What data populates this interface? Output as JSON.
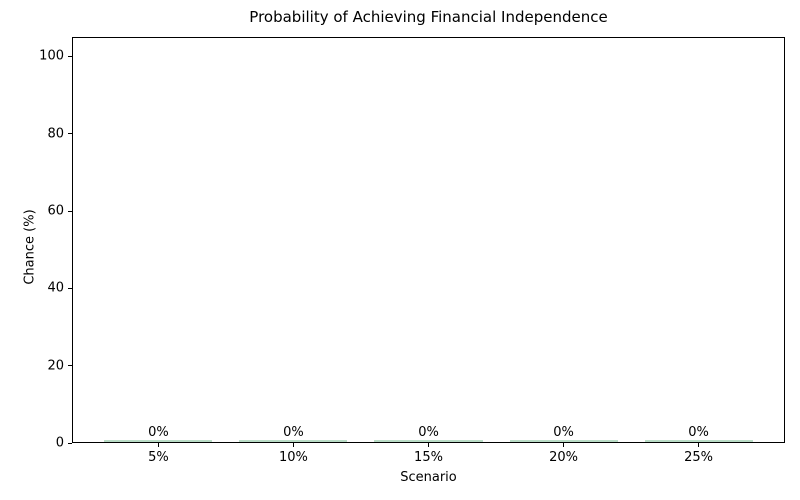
{
  "chart_data": {
    "type": "bar",
    "title": "Probability of Achieving Financial Independence",
    "xlabel": "Scenario",
    "ylabel": "Chance (%)",
    "categories": [
      "5%",
      "10%",
      "15%",
      "20%",
      "25%"
    ],
    "values": [
      0,
      0,
      0,
      0,
      0
    ],
    "bar_labels": [
      "0%",
      "0%",
      "0%",
      "0%",
      "0%"
    ],
    "yticks": [
      0,
      20,
      40,
      60,
      80,
      100
    ],
    "ylim": [
      0,
      105
    ],
    "bar_width_fraction": 0.8,
    "x_margin_units": 0.64,
    "grid": false,
    "legend": "none",
    "bar_color": "#b9dcc6",
    "spine_color": "#000000",
    "text_color": "#000000",
    "background_color": "#ffffff"
  }
}
